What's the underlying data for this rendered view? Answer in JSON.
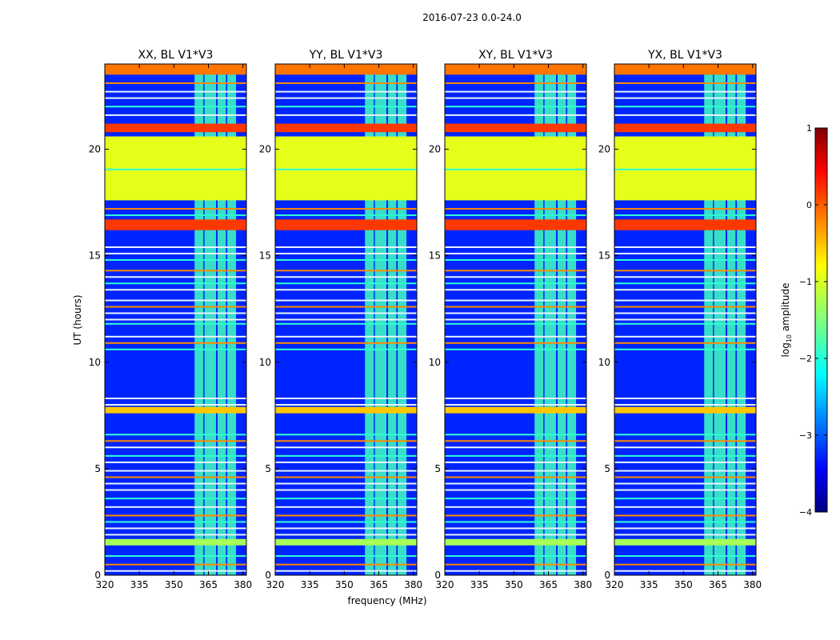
{
  "figure_title": "2016-07-23 0.0-24.0",
  "chart_data": {
    "type": "heatmap",
    "title": "2016-07-23 0.0-24.0",
    "xlabel": "frequency (MHz)",
    "ylabel": "UT (hours)",
    "xlim": [
      320,
      381.5
    ],
    "ylim": [
      0,
      24
    ],
    "xticks": [
      320,
      335,
      350,
      365,
      380
    ],
    "yticks": [
      0,
      5,
      10,
      15,
      20
    ],
    "panels": [
      {
        "title": "XX, BL V1*V3"
      },
      {
        "title": "YY, BL V1*V3"
      },
      {
        "title": "XY, BL V1*V3"
      },
      {
        "title": "YX, BL V1*V3"
      }
    ],
    "colorbar": {
      "label": "log10 amplitude",
      "label_base": "log",
      "label_sub": "10",
      "label_rest": " amplitude",
      "range": [
        -4,
        1
      ],
      "ticks": [
        -4,
        -3,
        -2,
        -1,
        0,
        1
      ],
      "colormap": "jet"
    },
    "rfi_channel_band_mhz": [
      359,
      377
    ],
    "rfi_channel_columns_mhz": [
      [
        359,
        362.8
      ],
      [
        363.3,
        368.3
      ],
      [
        369,
        372.6
      ],
      [
        373.2,
        377.0
      ]
    ],
    "flagged_blocks_ut": [
      {
        "from": 17.6,
        "to": 20.6,
        "level": -1.0
      },
      {
        "from": 23.5,
        "to": 24.0,
        "level": -0.2
      },
      {
        "from": 20.8,
        "to": 21.2,
        "level": 0.1
      },
      {
        "from": 16.2,
        "to": 16.7,
        "level": 0.1
      },
      {
        "from": 7.6,
        "to": 7.9,
        "level": -0.6
      },
      {
        "from": 1.4,
        "to": 1.7,
        "level": -1.3
      }
    ],
    "rfi_lines_ut": [
      23.1,
      22.7,
      22.4,
      22.0,
      21.6,
      17.2,
      16.9,
      15.4,
      15.1,
      14.8,
      14.3,
      14.0,
      13.7,
      13.4,
      12.9,
      12.6,
      12.3,
      12.0,
      11.8,
      11.2,
      10.9,
      10.6,
      8.3,
      8.0,
      6.6,
      6.3,
      6.0,
      5.6,
      5.3,
      4.9,
      4.6,
      4.3,
      4.0,
      3.6,
      3.2,
      2.8,
      2.5,
      2.2,
      1.9,
      0.9,
      0.5,
      0.2
    ],
    "background_level": -3.2,
    "rfi_channel_level": -1.8
  }
}
